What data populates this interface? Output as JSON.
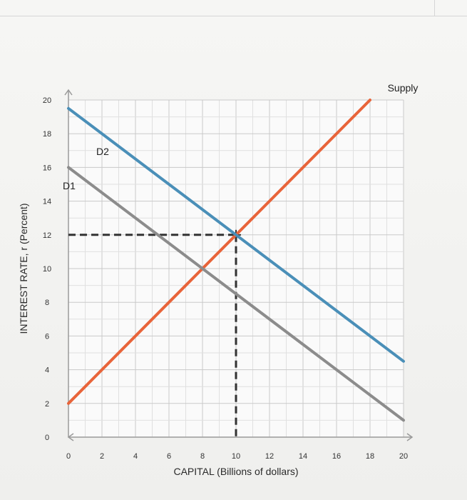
{
  "chart_data": {
    "type": "line",
    "xlabel": "CAPITAL (Billions of dollars)",
    "ylabel": "INTEREST RATE, r (Percent)",
    "xlim": [
      0,
      20
    ],
    "ylim": [
      0,
      20
    ],
    "x_ticks": [
      0,
      2,
      4,
      6,
      8,
      10,
      12,
      14,
      16,
      18,
      20
    ],
    "y_ticks": [
      0,
      2,
      4,
      6,
      8,
      10,
      12,
      14,
      16,
      18,
      20
    ],
    "grid": true,
    "series": [
      {
        "name": "Supply",
        "color": "#e8643a",
        "points": [
          [
            0,
            2
          ],
          [
            18,
            20
          ]
        ]
      },
      {
        "name": "D1",
        "color": "#8c8c8c",
        "points": [
          [
            0,
            16
          ],
          [
            20,
            1
          ]
        ]
      },
      {
        "name": "D2",
        "color": "#4a8fb8",
        "points": [
          [
            0,
            19.5
          ],
          [
            20,
            4.5
          ]
        ]
      }
    ],
    "equilibrium_guide": {
      "x": 10,
      "y": 12
    }
  }
}
